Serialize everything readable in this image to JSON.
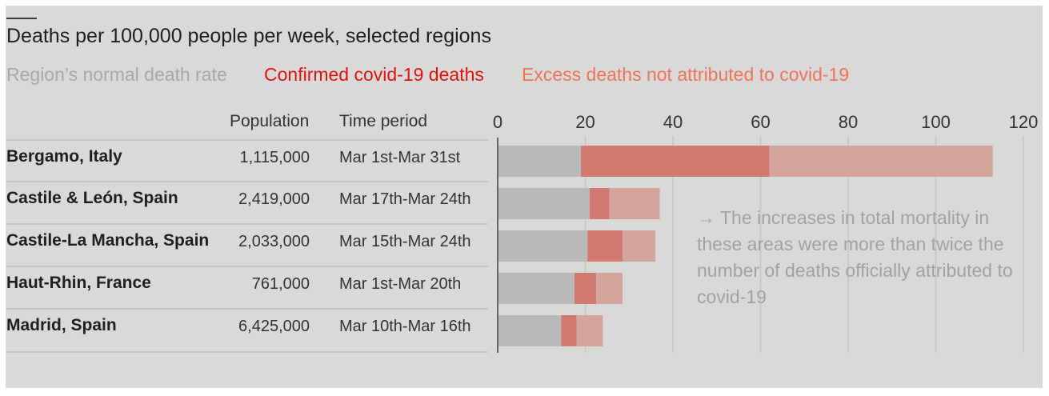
{
  "title": "Deaths per 100,000 people per week, selected regions",
  "legend": {
    "normal": "Region’s normal death rate",
    "covid": "Confirmed covid-19 deaths",
    "excess": "Excess deaths not attributed to covid-19"
  },
  "columns": {
    "population": "Population",
    "time_period": "Time period"
  },
  "rows": [
    {
      "region": "Bergamo, Italy",
      "population": "1,115,000",
      "period": "Mar 1st-Mar 31st"
    },
    {
      "region": "Castile & León, Spain",
      "population": "2,419,000",
      "period": "Mar 17th-Mar 24th"
    },
    {
      "region": "Castile-La Mancha, Spain",
      "population": "2,033,000",
      "period": "Mar 15th-Mar 24th"
    },
    {
      "region": "Haut-Rhin, France",
      "population": "761,000",
      "period": "Mar 1st-Mar 20th"
    },
    {
      "region": "Madrid, Spain",
      "population": "6,425,000",
      "period": "Mar 10th-Mar 16th"
    }
  ],
  "annotation": "→ The increases in total mortality in these areas were more than twice the number of deaths officially attributed to covid-19",
  "colors": {
    "normal": "#b9b9b9",
    "covid": "#d17a70",
    "excess": "#d4a59d",
    "grid": "#c6c6c6"
  },
  "chart_data": {
    "type": "bar",
    "orientation": "horizontal",
    "stacked": true,
    "title": "Deaths per 100,000 people per week, selected regions",
    "categories": [
      "Bergamo, Italy",
      "Castile & León, Spain",
      "Castile-La Mancha, Spain",
      "Haut-Rhin, France",
      "Madrid, Spain"
    ],
    "series": [
      {
        "name": "Region’s normal death rate",
        "values": [
          19,
          21,
          20.5,
          17.5,
          14.5
        ]
      },
      {
        "name": "Confirmed covid-19 deaths",
        "values": [
          43,
          4.5,
          8,
          5,
          3.5
        ]
      },
      {
        "name": "Excess deaths not attributed to covid-19",
        "values": [
          51,
          11.5,
          7.5,
          6,
          6
        ]
      }
    ],
    "xlim": [
      0,
      120
    ],
    "xticks": [
      0,
      20,
      40,
      60,
      80,
      100,
      120
    ],
    "grid": true,
    "legend_position": "top"
  }
}
